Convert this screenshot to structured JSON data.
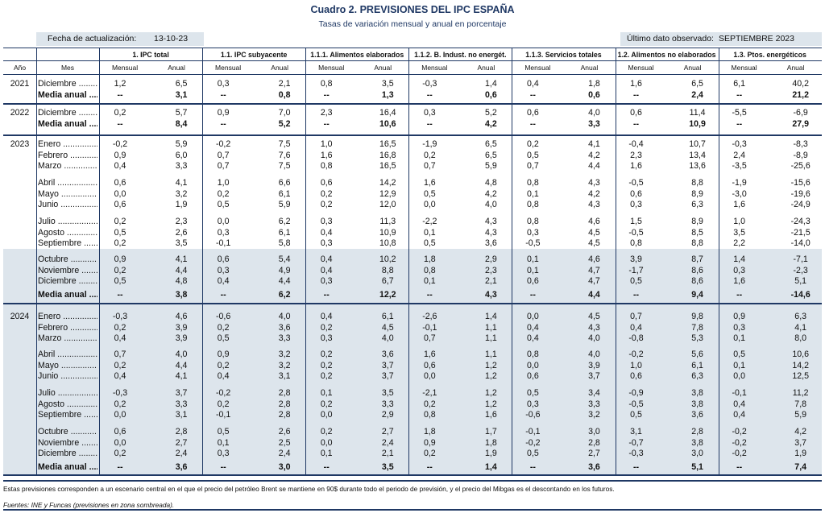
{
  "title": "Cuadro 2. PREVISIONES DEL IPC ESPAÑA",
  "subtitle": "Tasas de variación mensual y anual en porcentaje",
  "update": {
    "label": "Fecha de actualización:",
    "value": "13-10-23"
  },
  "last_observed": {
    "label": "Último dato observado:",
    "value": "SEPTIEMBRE 2023"
  },
  "headers": {
    "year": "Año",
    "month": "Mes",
    "groups": [
      "1. IPC total",
      "1.1. IPC subyacente",
      "1.1.1. Alimentos elaborados",
      "1.1.2. B. Indust. no energét.",
      "1.1.3. Servicios totales",
      "1.2. Alimentos no elaborados",
      "1.3. Ptos. energéticos"
    ],
    "sub": [
      "Mensual",
      "Anual"
    ]
  },
  "rows": [
    {
      "year": "2021",
      "mes": "Diciembre .........",
      "v": [
        "1,2",
        "6,5",
        "0,3",
        "2,1",
        "0,8",
        "3,5",
        "-0,3",
        "1,4",
        "0,4",
        "1,8",
        "1,6",
        "6,5",
        "6,1",
        "40,2"
      ]
    },
    {
      "year": "",
      "mes": "Media anual .....",
      "bold": true,
      "v": [
        "--",
        "3,1",
        "--",
        "0,8",
        "--",
        "1,3",
        "--",
        "0,6",
        "--",
        "0,6",
        "--",
        "2,4",
        "--",
        "21,2"
      ]
    },
    {
      "year": "2022",
      "mes": "Diciembre .........",
      "v": [
        "0,2",
        "5,7",
        "0,9",
        "7,0",
        "2,3",
        "16,4",
        "0,3",
        "5,2",
        "0,6",
        "4,0",
        "0,6",
        "11,4",
        "-5,5",
        "-6,9"
      ]
    },
    {
      "year": "",
      "mes": "Media anual .....",
      "bold": true,
      "v": [
        "--",
        "8,4",
        "--",
        "5,2",
        "--",
        "10,6",
        "--",
        "4,2",
        "--",
        "3,3",
        "--",
        "10,9",
        "--",
        "27,9"
      ]
    },
    {
      "year": "2023",
      "mes": "Enero ...................",
      "v": [
        "-0,2",
        "5,9",
        "-0,2",
        "7,5",
        "1,0",
        "16,5",
        "-1,9",
        "6,5",
        "0,2",
        "4,1",
        "-0,4",
        "10,7",
        "-0,3",
        "-8,3"
      ]
    },
    {
      "year": "",
      "mes": "Febrero ...............",
      "v": [
        "0,9",
        "6,0",
        "0,7",
        "7,6",
        "1,6",
        "16,8",
        "0,2",
        "6,5",
        "0,5",
        "4,2",
        "2,3",
        "13,4",
        "2,4",
        "-8,9"
      ]
    },
    {
      "year": "",
      "mes": "Marzo ..................",
      "v": [
        "0,4",
        "3,3",
        "0,7",
        "7,5",
        "0,8",
        "16,5",
        "0,7",
        "5,9",
        "0,7",
        "4,4",
        "1,6",
        "13,6",
        "-3,5",
        "-25,6"
      ]
    },
    {
      "year": "",
      "mes": "Abril ....................",
      "v": [
        "0,6",
        "4,1",
        "1,0",
        "6,6",
        "0,6",
        "14,2",
        "1,6",
        "4,8",
        "0,8",
        "4,3",
        "-0,5",
        "8,8",
        "-1,9",
        "-15,6"
      ]
    },
    {
      "year": "",
      "mes": "Mayo ...................",
      "v": [
        "0,0",
        "3,2",
        "0,2",
        "6,1",
        "0,2",
        "12,9",
        "0,5",
        "4,2",
        "0,1",
        "4,2",
        "0,6",
        "8,9",
        "-3,0",
        "-19,6"
      ]
    },
    {
      "year": "",
      "mes": "Junio ...................",
      "v": [
        "0,6",
        "1,9",
        "0,5",
        "5,9",
        "0,2",
        "12,0",
        "0,0",
        "4,0",
        "0,8",
        "4,3",
        "0,3",
        "6,3",
        "1,6",
        "-24,9"
      ]
    },
    {
      "year": "",
      "mes": "Julio ....................",
      "v": [
        "0,2",
        "2,3",
        "0,0",
        "6,2",
        "0,3",
        "11,3",
        "-2,2",
        "4,3",
        "0,8",
        "4,6",
        "1,5",
        "8,9",
        "1,0",
        "-24,3"
      ]
    },
    {
      "year": "",
      "mes": "Agosto ................",
      "v": [
        "0,5",
        "2,6",
        "0,3",
        "6,1",
        "0,4",
        "10,9",
        "0,1",
        "4,3",
        "0,3",
        "4,5",
        "-0,5",
        "8,5",
        "3,5",
        "-21,5"
      ]
    },
    {
      "year": "",
      "mes": "Septiembre .........",
      "v": [
        "0,2",
        "3,5",
        "-0,1",
        "5,8",
        "0,3",
        "10,8",
        "0,5",
        "3,6",
        "-0,5",
        "4,5",
        "0,8",
        "8,8",
        "2,2",
        "-14,0"
      ]
    },
    {
      "year": "",
      "mes": "Octubre ...............",
      "v": [
        "0,9",
        "4,1",
        "0,6",
        "5,4",
        "0,4",
        "10,2",
        "1,8",
        "2,9",
        "0,1",
        "4,6",
        "3,9",
        "8,7",
        "1,4",
        "-7,1"
      ]
    },
    {
      "year": "",
      "mes": "Noviembre ..........",
      "v": [
        "0,2",
        "4,4",
        "0,3",
        "4,9",
        "0,4",
        "8,8",
        "0,8",
        "2,3",
        "0,1",
        "4,7",
        "-1,7",
        "8,6",
        "0,3",
        "-2,3"
      ]
    },
    {
      "year": "",
      "mes": "Diciembre ...........",
      "v": [
        "0,5",
        "4,8",
        "0,4",
        "4,4",
        "0,3",
        "6,7",
        "0,1",
        "2,1",
        "0,6",
        "4,7",
        "0,5",
        "8,6",
        "1,6",
        "5,1"
      ]
    },
    {
      "year": "",
      "mes": "Media anual .....",
      "bold": true,
      "v": [
        "--",
        "3,8",
        "--",
        "6,2",
        "--",
        "12,2",
        "--",
        "4,3",
        "--",
        "4,4",
        "--",
        "9,4",
        "--",
        "-14,6"
      ]
    },
    {
      "year": "2024",
      "mes": "Enero ...................",
      "v": [
        "-0,3",
        "4,6",
        "-0,6",
        "4,0",
        "0,4",
        "6,1",
        "-2,6",
        "1,4",
        "0,0",
        "4,5",
        "0,7",
        "9,8",
        "0,9",
        "6,3"
      ]
    },
    {
      "year": "",
      "mes": "Febrero ...............",
      "v": [
        "0,2",
        "3,9",
        "0,2",
        "3,6",
        "0,2",
        "4,5",
        "-0,1",
        "1,1",
        "0,4",
        "4,3",
        "0,4",
        "7,8",
        "0,3",
        "4,1"
      ]
    },
    {
      "year": "",
      "mes": "Marzo ..................",
      "v": [
        "0,4",
        "3,9",
        "0,5",
        "3,3",
        "0,3",
        "4,0",
        "0,7",
        "1,1",
        "0,4",
        "4,0",
        "-0,8",
        "5,3",
        "0,1",
        "8,0"
      ]
    },
    {
      "year": "",
      "mes": "Abril ....................",
      "v": [
        "0,7",
        "4,0",
        "0,9",
        "3,2",
        "0,2",
        "3,6",
        "1,6",
        "1,1",
        "0,8",
        "4,0",
        "-0,2",
        "5,6",
        "0,5",
        "10,6"
      ]
    },
    {
      "year": "",
      "mes": "Mayo ...................",
      "v": [
        "0,2",
        "4,4",
        "0,2",
        "3,2",
        "0,2",
        "3,7",
        "0,6",
        "1,2",
        "0,0",
        "3,9",
        "1,0",
        "6,1",
        "0,1",
        "14,2"
      ]
    },
    {
      "year": "",
      "mes": "Junio ...................",
      "v": [
        "0,4",
        "4,1",
        "0,4",
        "3,1",
        "0,2",
        "3,7",
        "0,0",
        "1,2",
        "0,6",
        "3,7",
        "0,6",
        "6,3",
        "0,0",
        "12,5"
      ]
    },
    {
      "year": "",
      "mes": "Julio ....................",
      "v": [
        "-0,3",
        "3,7",
        "-0,2",
        "2,8",
        "0,1",
        "3,5",
        "-2,1",
        "1,2",
        "0,5",
        "3,4",
        "-0,9",
        "3,8",
        "-0,1",
        "11,2"
      ]
    },
    {
      "year": "",
      "mes": "Agosto ................",
      "v": [
        "0,2",
        "3,3",
        "0,2",
        "2,8",
        "0,2",
        "3,3",
        "0,2",
        "1,2",
        "0,3",
        "3,3",
        "-0,5",
        "3,8",
        "0,4",
        "7,8"
      ]
    },
    {
      "year": "",
      "mes": "Septiembre .........",
      "v": [
        "0,0",
        "3,1",
        "-0,1",
        "2,8",
        "0,0",
        "2,9",
        "0,8",
        "1,6",
        "-0,6",
        "3,2",
        "0,5",
        "3,6",
        "0,4",
        "5,9"
      ]
    },
    {
      "year": "",
      "mes": "Octubre ...............",
      "v": [
        "0,6",
        "2,8",
        "0,5",
        "2,6",
        "0,2",
        "2,7",
        "1,8",
        "1,7",
        "-0,1",
        "3,0",
        "3,1",
        "2,8",
        "-0,2",
        "4,2"
      ]
    },
    {
      "year": "",
      "mes": "Noviembre ..........",
      "v": [
        "0,0",
        "2,7",
        "0,1",
        "2,5",
        "0,0",
        "2,4",
        "0,9",
        "1,8",
        "-0,2",
        "2,8",
        "-0,7",
        "3,8",
        "-0,2",
        "3,7"
      ]
    },
    {
      "year": "",
      "mes": "Diciembre ...........",
      "v": [
        "0,2",
        "2,4",
        "0,3",
        "2,4",
        "0,1",
        "2,1",
        "0,2",
        "1,9",
        "0,5",
        "2,7",
        "-0,3",
        "3,0",
        "-0,2",
        "1,9"
      ]
    },
    {
      "year": "",
      "mes": "Media anual .....",
      "bold": true,
      "v": [
        "--",
        "3,6",
        "--",
        "3,0",
        "--",
        "3,5",
        "--",
        "1,4",
        "--",
        "3,6",
        "--",
        "5,1",
        "--",
        "7,4"
      ]
    }
  ],
  "footnote": "Estas previsiones corresponden a un escenario central en el que el precio del petróleo Brent se mantiene en 90$ durante todo el periodo de previsión, y el precio del Mibgas es el descontando en los futuros.",
  "source": "Fuentes: INE y Funcas (previsiones en zona sombreada)."
}
